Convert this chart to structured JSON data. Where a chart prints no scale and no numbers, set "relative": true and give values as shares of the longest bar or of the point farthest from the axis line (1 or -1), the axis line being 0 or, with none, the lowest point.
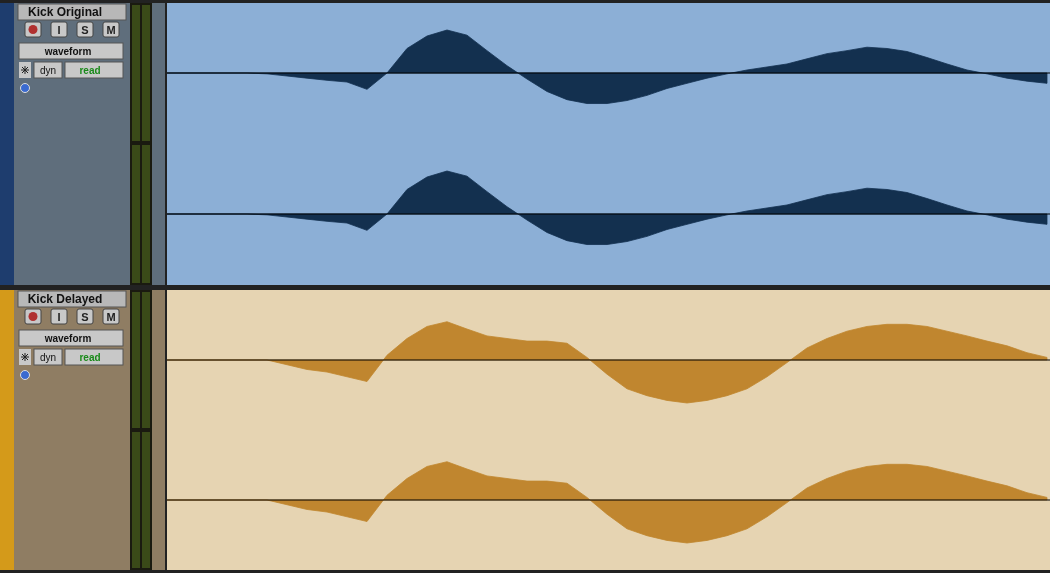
{
  "chart_data": [
    {
      "type": "area",
      "title": "Kick Original",
      "annotations": [
        "I",
        "S",
        "M",
        "waveform",
        "dyn",
        "read"
      ],
      "relative": true,
      "categories": [
        null,
        null,
        null,
        null,
        null,
        null,
        null,
        null,
        null,
        null,
        null,
        null,
        null,
        null,
        null,
        null,
        null,
        null,
        null,
        null,
        null,
        null,
        null,
        null,
        null,
        null,
        null,
        null,
        null,
        null,
        null,
        null,
        null,
        null,
        null,
        null,
        null,
        null,
        null,
        null,
        null,
        null,
        null,
        null,
        null
      ],
      "series": [
        {
          "color": "#13304f",
          "values": [
            0,
            0,
            0,
            0,
            0,
            -0.02,
            -0.07,
            -0.12,
            -0.17,
            -0.21,
            -0.38,
            0,
            0.57,
            0.86,
            1,
            0.88,
            0.52,
            0.17,
            -0.14,
            -0.43,
            -0.62,
            -0.71,
            -0.71,
            -0.64,
            -0.52,
            -0.36,
            -0.24,
            -0.12,
            -0.02,
            0.07,
            0.14,
            0.21,
            0.33,
            0.45,
            0.52,
            0.6,
            0.57,
            0.5,
            0.36,
            0.21,
            0.07,
            -0.02,
            -0.12,
            -0.19,
            -0.24
          ]
        }
      ]
    },
    {
      "type": "area",
      "relative": true,
      "categories": [
        null,
        null,
        null,
        null,
        null,
        null,
        null,
        null,
        null,
        null,
        null,
        null,
        null,
        null,
        null,
        null,
        null,
        null,
        null,
        null,
        null,
        null,
        null,
        null,
        null,
        null,
        null,
        null,
        null,
        null,
        null,
        null,
        null,
        null,
        null,
        null,
        null,
        null,
        null,
        null,
        null,
        null,
        null,
        null,
        null
      ],
      "series": [
        {
          "color": "#13304f",
          "values": [
            0,
            0,
            0,
            0,
            0,
            -0.02,
            -0.07,
            -0.12,
            -0.17,
            -0.21,
            -0.38,
            0,
            0.57,
            0.86,
            1,
            0.88,
            0.52,
            0.17,
            -0.14,
            -0.43,
            -0.62,
            -0.71,
            -0.71,
            -0.64,
            -0.52,
            -0.36,
            -0.24,
            -0.12,
            -0.02,
            0.07,
            0.14,
            0.21,
            0.33,
            0.45,
            0.52,
            0.6,
            0.57,
            0.5,
            0.36,
            0.21,
            0.07,
            -0.02,
            -0.12,
            -0.19,
            -0.24
          ]
        }
      ]
    },
    {
      "type": "area",
      "title": "Kick Delayed",
      "annotations": [
        "I",
        "S",
        "M",
        "waveform",
        "dyn",
        "read"
      ],
      "relative": true,
      "categories": [
        null,
        null,
        null,
        null,
        null,
        null,
        null,
        null,
        null,
        null,
        null,
        null,
        null,
        null,
        null,
        null,
        null,
        null,
        null,
        null,
        null,
        null,
        null,
        null,
        null,
        null,
        null,
        null,
        null,
        null,
        null,
        null,
        null,
        null,
        null,
        null,
        null,
        null,
        null,
        null,
        null,
        null,
        null,
        null,
        null
      ],
      "series": [
        {
          "color": "#c0862f",
          "values": [
            0,
            0,
            0,
            0,
            0,
            0,
            -0.11,
            -0.22,
            -0.28,
            -0.39,
            -0.5,
            0.11,
            0.5,
            0.78,
            0.89,
            0.72,
            0.56,
            0.5,
            0.44,
            0.44,
            0.39,
            0.06,
            -0.33,
            -0.67,
            -0.83,
            -0.94,
            -1,
            -0.94,
            -0.83,
            -0.67,
            -0.39,
            -0.06,
            0.28,
            0.5,
            0.67,
            0.78,
            0.83,
            0.83,
            0.78,
            0.67,
            0.56,
            0.44,
            0.33,
            0.17,
            0.06
          ]
        }
      ]
    },
    {
      "type": "area",
      "relative": true,
      "categories": [
        null,
        null,
        null,
        null,
        null,
        null,
        null,
        null,
        null,
        null,
        null,
        null,
        null,
        null,
        null,
        null,
        null,
        null,
        null,
        null,
        null,
        null,
        null,
        null,
        null,
        null,
        null,
        null,
        null,
        null,
        null,
        null,
        null,
        null,
        null,
        null,
        null,
        null,
        null,
        null,
        null,
        null,
        null,
        null,
        null
      ],
      "series": [
        {
          "color": "#c0862f",
          "values": [
            0,
            0,
            0,
            0,
            0,
            0,
            -0.11,
            -0.22,
            -0.28,
            -0.39,
            -0.5,
            0.11,
            0.5,
            0.78,
            0.89,
            0.72,
            0.56,
            0.5,
            0.44,
            0.44,
            0.39,
            0.06,
            -0.33,
            -0.67,
            -0.83,
            -0.94,
            -1,
            -0.94,
            -0.83,
            -0.67,
            -0.39,
            -0.06,
            0.28,
            0.5,
            0.67,
            0.78,
            0.83,
            0.83,
            0.78,
            0.67,
            0.56,
            0.44,
            0.33,
            0.17,
            0.06
          ]
        }
      ]
    }
  ]
}
